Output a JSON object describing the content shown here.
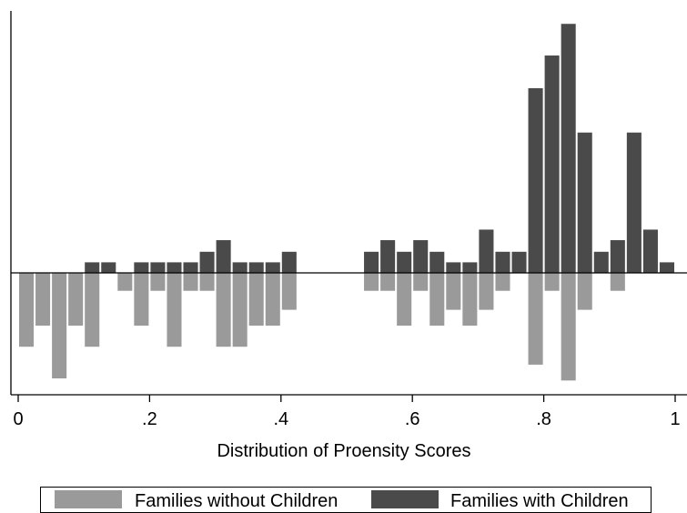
{
  "chart_data": {
    "type": "bar",
    "xlabel": "Distribution of Proensity Scores",
    "ylabel": "",
    "xlim": [
      0,
      1
    ],
    "ylim": [
      -1.1,
      2.4
    ],
    "x_ticks": [
      "0",
      ".2",
      ".4",
      ".6",
      ".8",
      "1"
    ],
    "x_tick_values": [
      0,
      0.2,
      0.4,
      0.6,
      0.8,
      1.0
    ],
    "grid": false,
    "legend_position": "bottom",
    "colors": {
      "without_children": "#9a9a9a",
      "with_children": "#4a4a4a",
      "axis": "#000000",
      "baseline": "#000000"
    },
    "bin_width": 0.025,
    "bin_centers": [
      0.0125,
      0.0375,
      0.0625,
      0.0875,
      0.1125,
      0.1375,
      0.1625,
      0.1875,
      0.2125,
      0.2375,
      0.2625,
      0.2875,
      0.3125,
      0.3375,
      0.3625,
      0.3875,
      0.4125,
      0.4375,
      0.4625,
      0.4875,
      0.5125,
      0.5375,
      0.5625,
      0.5875,
      0.6125,
      0.6375,
      0.6625,
      0.6875,
      0.7125,
      0.7375,
      0.7625,
      0.7875,
      0.8125,
      0.8375,
      0.8625,
      0.8875,
      0.9125,
      0.9375,
      0.9625,
      0.9875
    ],
    "series": [
      {
        "name": "Families without Children",
        "direction": "down",
        "values": [
          0.7,
          0.5,
          1.0,
          0.5,
          0.7,
          0,
          0.17,
          0.5,
          0.17,
          0.7,
          0.17,
          0.17,
          0.7,
          0.7,
          0.5,
          0.5,
          0.35,
          0,
          0,
          0,
          0,
          0.17,
          0.17,
          0.5,
          0.17,
          0.5,
          0.35,
          0.5,
          0.35,
          0.17,
          0,
          0.87,
          0.17,
          1.02,
          0.35,
          0,
          0.17,
          0,
          0,
          0
        ]
      },
      {
        "name": "Families with Children",
        "direction": "up",
        "values": [
          0,
          0,
          0,
          0,
          0.1,
          0.1,
          0,
          0.1,
          0.1,
          0.1,
          0.1,
          0.2,
          0.31,
          0.1,
          0.1,
          0.1,
          0.2,
          0,
          0,
          0,
          0,
          0.2,
          0.31,
          0.2,
          0.31,
          0.2,
          0.1,
          0.1,
          0.41,
          0.2,
          0.2,
          1.75,
          2.06,
          2.36,
          1.33,
          0.2,
          0.31,
          1.33,
          0.41,
          0.1
        ]
      }
    ]
  }
}
